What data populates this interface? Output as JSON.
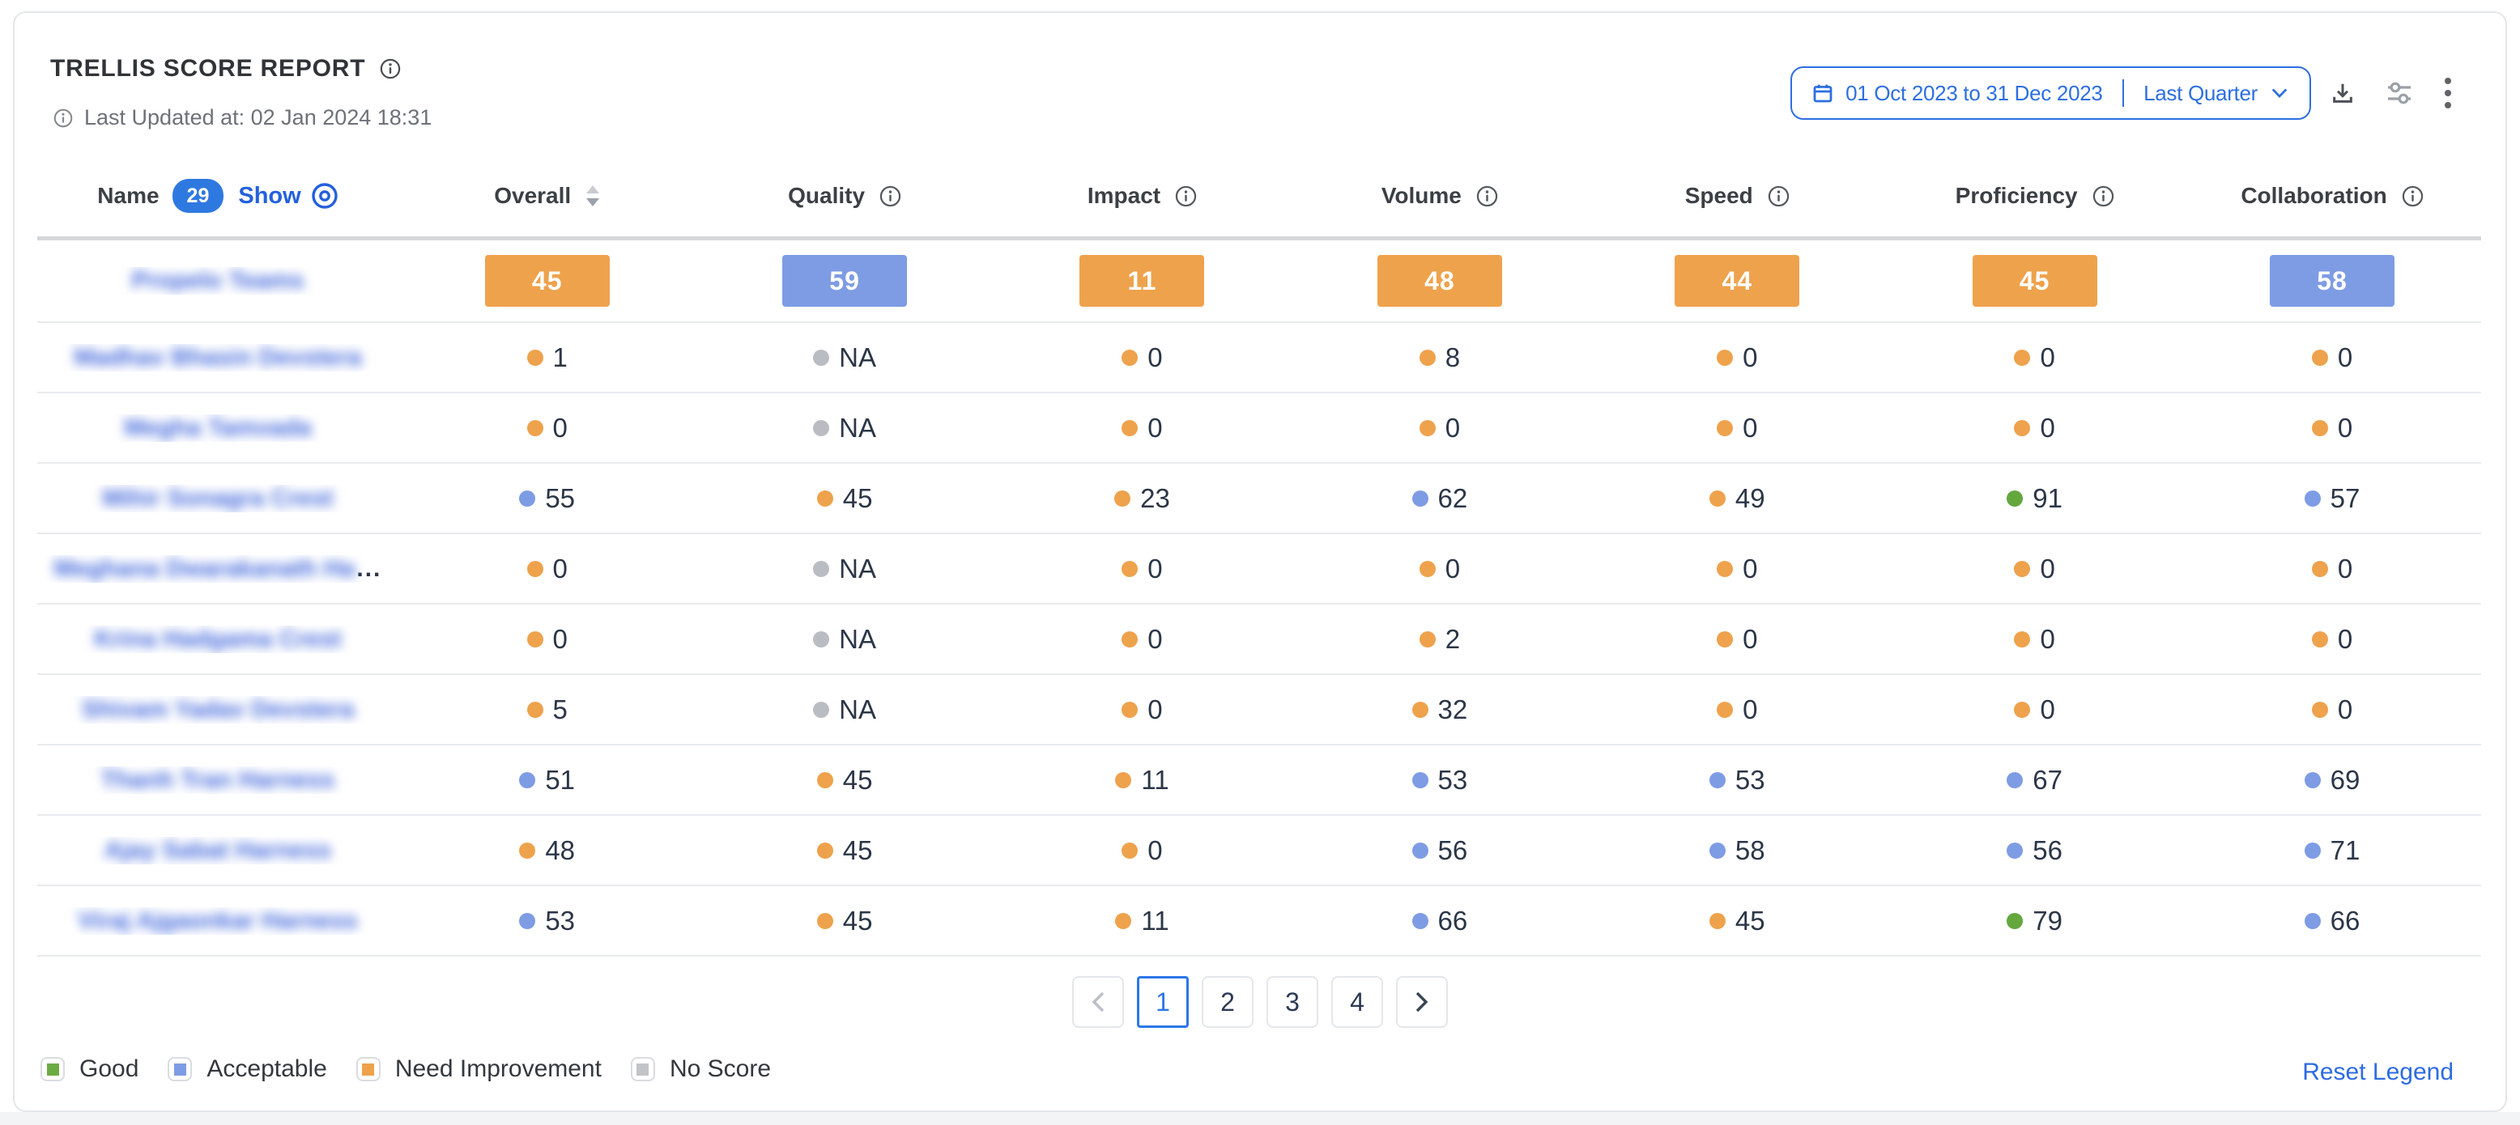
{
  "report": {
    "title": "TRELLIS SCORE REPORT",
    "last_updated": "Last Updated at: 02 Jan 2024 18:31",
    "date_range": {
      "range_text": "01 Oct 2023 to 31 Dec 2023",
      "preset": "Last Quarter"
    },
    "toolbar_icons": [
      "download-icon",
      "sliders-icon",
      "kebab-menu-icon"
    ]
  },
  "table": {
    "name_header": {
      "label": "Name",
      "count": "29",
      "show_label": "Show"
    },
    "columns": [
      {
        "label": "Overall",
        "icon": "sort-icon"
      },
      {
        "label": "Quality",
        "icon": "info-icon"
      },
      {
        "label": "Impact",
        "icon": "info-icon"
      },
      {
        "label": "Volume",
        "icon": "info-icon"
      },
      {
        "label": "Speed",
        "icon": "info-icon"
      },
      {
        "label": "Proficiency",
        "icon": "info-icon"
      },
      {
        "label": "Collaboration",
        "icon": "info-icon"
      }
    ],
    "summary_row": {
      "name": "Propelo Teams",
      "masked": true,
      "scores": [
        {
          "value": "45",
          "level": "need_improvement"
        },
        {
          "value": "59",
          "level": "acceptable"
        },
        {
          "value": "11",
          "level": "need_improvement"
        },
        {
          "value": "48",
          "level": "need_improvement"
        },
        {
          "value": "44",
          "level": "need_improvement"
        },
        {
          "value": "45",
          "level": "need_improvement"
        },
        {
          "value": "58",
          "level": "acceptable"
        }
      ]
    },
    "rows": [
      {
        "name": "Madhav Bhasin Devstera",
        "masked": true,
        "truncated": false,
        "scores": [
          {
            "value": "1",
            "level": "need_improvement"
          },
          {
            "value": "NA",
            "level": "no_score"
          },
          {
            "value": "0",
            "level": "need_improvement"
          },
          {
            "value": "8",
            "level": "need_improvement"
          },
          {
            "value": "0",
            "level": "need_improvement"
          },
          {
            "value": "0",
            "level": "need_improvement"
          },
          {
            "value": "0",
            "level": "need_improvement"
          }
        ]
      },
      {
        "name": "Megha Tamvada",
        "masked": true,
        "truncated": false,
        "scores": [
          {
            "value": "0",
            "level": "need_improvement"
          },
          {
            "value": "NA",
            "level": "no_score"
          },
          {
            "value": "0",
            "level": "need_improvement"
          },
          {
            "value": "0",
            "level": "need_improvement"
          },
          {
            "value": "0",
            "level": "need_improvement"
          },
          {
            "value": "0",
            "level": "need_improvement"
          },
          {
            "value": "0",
            "level": "need_improvement"
          }
        ]
      },
      {
        "name": "Mihir Sonagra Crest",
        "masked": true,
        "truncated": false,
        "scores": [
          {
            "value": "55",
            "level": "acceptable"
          },
          {
            "value": "45",
            "level": "need_improvement"
          },
          {
            "value": "23",
            "level": "need_improvement"
          },
          {
            "value": "62",
            "level": "acceptable"
          },
          {
            "value": "49",
            "level": "need_improvement"
          },
          {
            "value": "91",
            "level": "good"
          },
          {
            "value": "57",
            "level": "acceptable"
          }
        ]
      },
      {
        "name": "Meghana Dwarakanath Ha",
        "masked": true,
        "truncated": true,
        "scores": [
          {
            "value": "0",
            "level": "need_improvement"
          },
          {
            "value": "NA",
            "level": "no_score"
          },
          {
            "value": "0",
            "level": "need_improvement"
          },
          {
            "value": "0",
            "level": "need_improvement"
          },
          {
            "value": "0",
            "level": "need_improvement"
          },
          {
            "value": "0",
            "level": "need_improvement"
          },
          {
            "value": "0",
            "level": "need_improvement"
          }
        ]
      },
      {
        "name": "Krina Hadgama Crest",
        "masked": true,
        "truncated": false,
        "scores": [
          {
            "value": "0",
            "level": "need_improvement"
          },
          {
            "value": "NA",
            "level": "no_score"
          },
          {
            "value": "0",
            "level": "need_improvement"
          },
          {
            "value": "2",
            "level": "need_improvement"
          },
          {
            "value": "0",
            "level": "need_improvement"
          },
          {
            "value": "0",
            "level": "need_improvement"
          },
          {
            "value": "0",
            "level": "need_improvement"
          }
        ]
      },
      {
        "name": "Shivam Yadav Devstera",
        "masked": true,
        "truncated": false,
        "scores": [
          {
            "value": "5",
            "level": "need_improvement"
          },
          {
            "value": "NA",
            "level": "no_score"
          },
          {
            "value": "0",
            "level": "need_improvement"
          },
          {
            "value": "32",
            "level": "need_improvement"
          },
          {
            "value": "0",
            "level": "need_improvement"
          },
          {
            "value": "0",
            "level": "need_improvement"
          },
          {
            "value": "0",
            "level": "need_improvement"
          }
        ]
      },
      {
        "name": "Thanh Tran Harness",
        "masked": true,
        "truncated": false,
        "scores": [
          {
            "value": "51",
            "level": "acceptable"
          },
          {
            "value": "45",
            "level": "need_improvement"
          },
          {
            "value": "11",
            "level": "need_improvement"
          },
          {
            "value": "53",
            "level": "acceptable"
          },
          {
            "value": "53",
            "level": "acceptable"
          },
          {
            "value": "67",
            "level": "acceptable"
          },
          {
            "value": "69",
            "level": "acceptable"
          }
        ]
      },
      {
        "name": "Ajay Sabat Harness",
        "masked": true,
        "truncated": false,
        "scores": [
          {
            "value": "48",
            "level": "need_improvement"
          },
          {
            "value": "45",
            "level": "need_improvement"
          },
          {
            "value": "0",
            "level": "need_improvement"
          },
          {
            "value": "56",
            "level": "acceptable"
          },
          {
            "value": "58",
            "level": "acceptable"
          },
          {
            "value": "56",
            "level": "acceptable"
          },
          {
            "value": "71",
            "level": "acceptable"
          }
        ]
      },
      {
        "name": "Viraj Ajgaonkar Harness",
        "masked": true,
        "truncated": false,
        "scores": [
          {
            "value": "53",
            "level": "acceptable"
          },
          {
            "value": "45",
            "level": "need_improvement"
          },
          {
            "value": "11",
            "level": "need_improvement"
          },
          {
            "value": "66",
            "level": "acceptable"
          },
          {
            "value": "45",
            "level": "need_improvement"
          },
          {
            "value": "79",
            "level": "good"
          },
          {
            "value": "66",
            "level": "acceptable"
          }
        ]
      }
    ]
  },
  "pagination": {
    "pages": [
      "1",
      "2",
      "3",
      "4"
    ],
    "active_page": "1"
  },
  "legend": {
    "items": [
      {
        "label": "Good",
        "level": "good"
      },
      {
        "label": "Acceptable",
        "level": "acceptable"
      },
      {
        "label": "Need Improvement",
        "level": "need_improvement"
      },
      {
        "label": "No Score",
        "level": "no_score"
      }
    ],
    "reset_label": "Reset Legend"
  },
  "colors": {
    "good": "#63a73d",
    "acceptable": "#7e9ce4",
    "need_improvement": "#eea24c",
    "no_score": "#b9bdc3",
    "legend_good": "#6cab44",
    "legend_no_score": "#c2c4c7",
    "accent_blue": "#2d6fe0"
  }
}
